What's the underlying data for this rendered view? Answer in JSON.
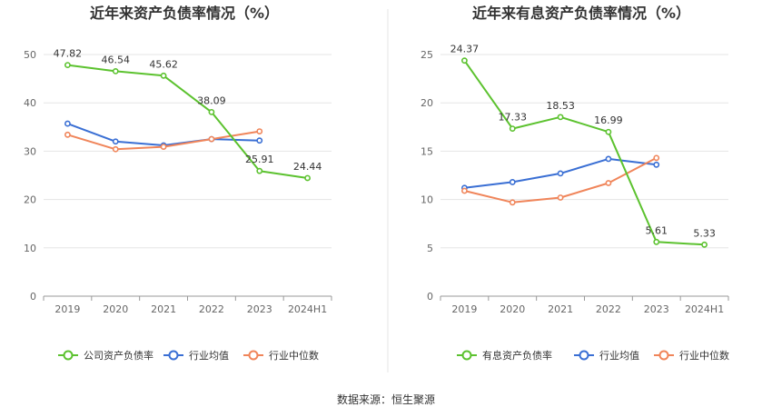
{
  "source_label": "数据来源：恒生聚源",
  "colors": {
    "company": "#5cc22f",
    "industry_avg": "#3a6fd4",
    "industry_median": "#f0855a",
    "grid": "#e5e5e5",
    "axis": "#999999"
  },
  "chart_data": [
    {
      "type": "line",
      "title": "近年来资产负债率情况（%）",
      "categories": [
        "2019",
        "2020",
        "2021",
        "2022",
        "2023",
        "2024H1"
      ],
      "ylim": [
        0,
        50
      ],
      "yticks": [
        0,
        10,
        20,
        30,
        40,
        50
      ],
      "grid": true,
      "legend_position": "bottom",
      "series": [
        {
          "name": "公司资产负债率",
          "color": "#5cc22f",
          "values": [
            47.82,
            46.54,
            45.62,
            38.09,
            25.91,
            24.44
          ],
          "labels": [
            "47.82",
            "46.54",
            "45.62",
            "38.09",
            "25.91",
            "24.44"
          ]
        },
        {
          "name": "行业均值",
          "color": "#3a6fd4",
          "values": [
            35.7,
            32.0,
            31.2,
            32.5,
            32.2,
            null
          ]
        },
        {
          "name": "行业中位数",
          "color": "#f0855a",
          "values": [
            33.4,
            30.4,
            30.9,
            32.5,
            34.1,
            null
          ]
        }
      ]
    },
    {
      "type": "line",
      "title": "近年来有息资产负债率情况（%）",
      "categories": [
        "2019",
        "2020",
        "2021",
        "2022",
        "2023",
        "2024H1"
      ],
      "ylim": [
        0,
        25
      ],
      "yticks": [
        0,
        5,
        10,
        15,
        20,
        25
      ],
      "grid": true,
      "legend_position": "bottom",
      "series": [
        {
          "name": "有息资产负债率",
          "color": "#5cc22f",
          "values": [
            24.37,
            17.33,
            18.53,
            16.99,
            5.61,
            5.33
          ],
          "labels": [
            "24.37",
            "17.33",
            "18.53",
            "16.99",
            "5.61",
            "5.33"
          ]
        },
        {
          "name": "行业均值",
          "color": "#3a6fd4",
          "values": [
            11.2,
            11.8,
            12.7,
            14.2,
            13.6,
            null
          ]
        },
        {
          "name": "行业中位数",
          "color": "#f0855a",
          "values": [
            10.9,
            9.7,
            10.2,
            11.7,
            14.3,
            null
          ]
        }
      ]
    }
  ]
}
